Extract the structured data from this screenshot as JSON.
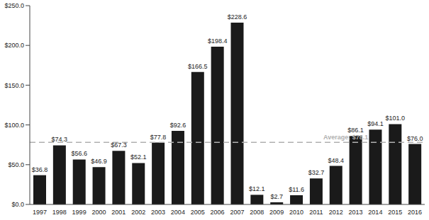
{
  "chart_data": {
    "type": "bar",
    "categories": [
      "1997",
      "1998",
      "1999",
      "2000",
      "2001",
      "2002",
      "2003",
      "2004",
      "2005",
      "2006",
      "2007",
      "2008",
      "2009",
      "2010",
      "2011",
      "2012",
      "2013",
      "2014",
      "2015",
      "2016"
    ],
    "values": [
      36.8,
      74.3,
      56.6,
      46.9,
      67.3,
      52.1,
      77.8,
      92.6,
      166.5,
      198.4,
      228.6,
      12.1,
      2.7,
      11.6,
      32.7,
      48.4,
      86.1,
      94.1,
      101.0,
      76.0
    ],
    "value_labels": [
      "$36.8",
      "$74.3",
      "$56.6",
      "$46.9",
      "$67.3",
      "$52.1",
      "$77.8",
      "$92.6",
      "$166.5",
      "$198.4",
      "$228.6",
      "$12.1",
      "$2.7",
      "$11.6",
      "$32.7",
      "$48.4",
      "$86.1",
      "$94.1",
      "$101.0",
      "$76.0"
    ],
    "color": "#1a1a1a",
    "ylim": [
      0,
      250
    ],
    "yticks": [
      {
        "value": 0,
        "label": "$0.0"
      },
      {
        "value": 50,
        "label": "$50.0"
      },
      {
        "value": 100,
        "label": "$100.0"
      },
      {
        "value": 150,
        "label": "$150.0"
      },
      {
        "value": 200,
        "label": "$200.0"
      },
      {
        "value": 250,
        "label": "$250.0"
      }
    ],
    "data_labels": true,
    "grid": false,
    "reference_line": {
      "value": 78.1,
      "label": "Average: $78.1"
    }
  }
}
